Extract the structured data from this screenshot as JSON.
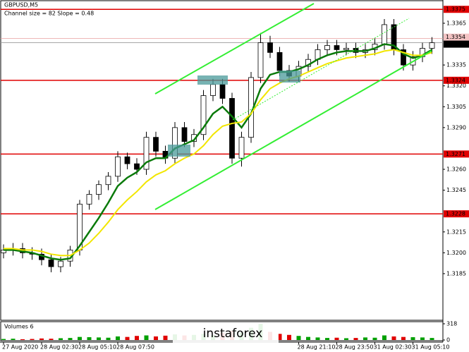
{
  "chart_data": {
    "type": "candlestick",
    "title": "GBPUSD,M5",
    "subtitle": "Channel size = 82 Slope = 0.48",
    "watermark": "instaforex",
    "categories": [
      "27 Aug 2020",
      null,
      null,
      null,
      "28 Aug 02:30",
      null,
      null,
      null,
      "28 Aug 05:10",
      null,
      null,
      null,
      "28 Aug 07:50",
      null,
      null,
      null,
      null,
      null,
      null,
      null,
      null,
      null,
      null,
      null,
      null,
      null,
      null,
      null,
      null,
      null,
      null,
      "28 Aug 21:10",
      null,
      null,
      null,
      "28 Aug 23:50",
      null,
      null,
      null,
      "31 Aug 02:30",
      null,
      null,
      null,
      "31 Aug 05:10",
      null,
      null
    ],
    "open": [
      1.32,
      1.3202,
      1.3203,
      1.32,
      1.3199,
      1.3195,
      1.319,
      1.3194,
      1.3202,
      1.3235,
      1.3242,
      1.3249,
      1.3255,
      1.3269,
      1.3264,
      1.326,
      1.3283,
      1.3273,
      1.3268,
      1.329,
      1.328,
      1.3285,
      1.3313,
      1.3321,
      1.3311,
      1.3268,
      1.3283,
      1.3326,
      1.3351,
      1.3344,
      1.3331,
      1.3327,
      1.3334,
      1.3339,
      1.3346,
      1.3349,
      1.3346,
      1.3347,
      1.3344,
      1.3346,
      1.335,
      1.3364,
      1.3346,
      1.3335,
      1.3341,
      1.3347
    ],
    "high": [
      1.3206,
      1.3207,
      1.3207,
      1.3204,
      1.3203,
      1.3199,
      1.3197,
      1.3205,
      1.3238,
      1.3245,
      1.3252,
      1.3258,
      1.3273,
      1.3272,
      1.3268,
      1.3287,
      1.3287,
      1.3277,
      1.3294,
      1.3294,
      1.3289,
      1.3317,
      1.3325,
      1.3325,
      1.3315,
      1.3287,
      1.333,
      1.3358,
      1.3356,
      1.3348,
      1.3335,
      1.3338,
      1.3343,
      1.335,
      1.3353,
      1.3353,
      1.3351,
      1.3351,
      1.335,
      1.3354,
      1.3368,
      1.3368,
      1.335,
      1.3345,
      1.3351,
      1.3355
    ],
    "low": [
      1.3196,
      1.3198,
      1.3196,
      1.3195,
      1.3191,
      1.3186,
      1.3186,
      1.319,
      1.3198,
      1.3231,
      1.3238,
      1.3245,
      1.3251,
      1.326,
      1.3256,
      1.3256,
      1.3269,
      1.3264,
      1.3264,
      1.3276,
      1.3276,
      1.3281,
      1.3309,
      1.3307,
      1.3264,
      1.3262,
      1.3279,
      1.3322,
      1.334,
      1.3327,
      1.3323,
      1.3323,
      1.333,
      1.3335,
      1.3342,
      1.3342,
      1.3342,
      1.334,
      1.334,
      1.3342,
      1.3346,
      1.3342,
      1.3331,
      1.3331,
      1.3337,
      1.3343
    ],
    "close": [
      1.3202,
      1.3203,
      1.32,
      1.3199,
      1.3195,
      1.319,
      1.3194,
      1.3202,
      1.3235,
      1.3242,
      1.3249,
      1.3255,
      1.3269,
      1.3264,
      1.326,
      1.3283,
      1.3273,
      1.3268,
      1.329,
      1.328,
      1.3285,
      1.3313,
      1.3321,
      1.3311,
      1.3268,
      1.3283,
      1.3326,
      1.3351,
      1.3344,
      1.3331,
      1.3327,
      1.3334,
      1.3339,
      1.3346,
      1.3349,
      1.3346,
      1.3347,
      1.3344,
      1.3346,
      1.335,
      1.3364,
      1.3346,
      1.3335,
      1.3341,
      1.3347,
      1.3351
    ],
    "series": [
      {
        "color": "#0a7a0a",
        "values": [
          1.3202,
          1.3202,
          1.3201,
          1.32,
          1.3198,
          1.3196,
          1.3195,
          1.3196,
          1.3205,
          1.3215,
          1.3225,
          1.3236,
          1.3248,
          1.3254,
          1.3258,
          1.3265,
          1.3268,
          1.3268,
          1.3275,
          1.3278,
          1.3281,
          1.329,
          1.33,
          1.3305,
          1.3298,
          1.329,
          1.33,
          1.3318,
          1.3328,
          1.333,
          1.333,
          1.3332,
          1.3335,
          1.3339,
          1.3342,
          1.3344,
          1.3345,
          1.3345,
          1.3345,
          1.3347,
          1.335,
          1.3349,
          1.3343,
          1.334,
          1.3342,
          1.3346
        ]
      },
      {
        "color": "#f2e600",
        "values": [
          1.3203,
          1.3203,
          1.3202,
          1.3202,
          1.3201,
          1.3199,
          1.3198,
          1.3198,
          1.3202,
          1.3207,
          1.3214,
          1.3222,
          1.3231,
          1.3238,
          1.3244,
          1.3251,
          1.3256,
          1.3259,
          1.3264,
          1.3268,
          1.3271,
          1.3277,
          1.3285,
          1.3291,
          1.3293,
          1.3294,
          1.33,
          1.331,
          1.3318,
          1.3322,
          1.3325,
          1.3327,
          1.333,
          1.3333,
          1.3336,
          1.3338,
          1.334,
          1.3341,
          1.3342,
          1.3343,
          1.3345,
          1.3346,
          1.3344,
          1.3342,
          1.3342,
          1.3344
        ]
      }
    ],
    "ylim": [
      1.3152,
      1.33807
    ],
    "yticks": [
      1.3365,
      1.3335,
      {
        "value": 1.332,
        "label": "1.3320"
      },
      1.3305,
      {
        "value": 1.329,
        "label": "1.3290"
      },
      {
        "value": 1.326,
        "label": "1.3260"
      },
      1.3245,
      1.3215,
      {
        "value": 1.32,
        "label": "1.3200"
      },
      1.3185
    ],
    "levels": [
      1.3375,
      1.3324,
      1.3271,
      1.3228
    ],
    "level_color": "#e00000",
    "price_lines": [
      1.3354,
      1.3351
    ],
    "volume_title": "Volumes 6",
    "volumes": [
      20,
      25,
      15,
      20,
      30,
      25,
      35,
      40,
      60,
      55,
      50,
      45,
      70,
      60,
      80,
      90,
      70,
      85,
      110,
      90,
      100,
      120,
      95,
      140,
      180,
      150,
      240,
      318,
      160,
      120,
      100,
      80,
      60,
      50,
      40,
      45,
      35,
      40,
      50,
      45,
      90,
      70,
      60,
      55,
      50,
      40
    ],
    "volume_ylim": [
      0,
      318
    ],
    "volume_yticks": [
      0,
      318
    ],
    "up_color": "#00a000",
    "down_color": "#e00000"
  }
}
